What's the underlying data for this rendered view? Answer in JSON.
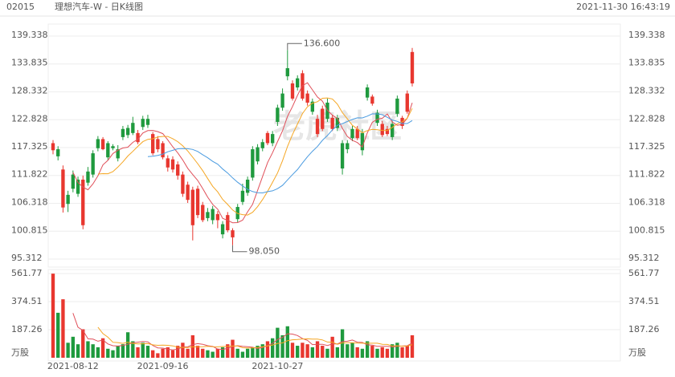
{
  "header": {
    "code": "02015",
    "title": "理想汽车-W - 日K线图",
    "timestamp": "2021-11-30 16:43:19"
  },
  "chart_data": {
    "type": "candlestick",
    "watermark": "老虎社区",
    "up_color": "#e8372f",
    "down_color": "#1f9a3e",
    "ma_colors": [
      "#e0505a",
      "#f5a623",
      "#4a9be0"
    ],
    "categories": [
      null,
      null,
      null,
      null,
      "2021-08-12",
      null,
      null,
      null,
      null,
      null,
      null,
      null,
      null,
      null,
      null,
      null,
      null,
      null,
      null,
      null,
      null,
      null,
      "2021-09-16",
      null,
      null,
      null,
      null,
      null,
      null,
      null,
      null,
      null,
      null,
      null,
      null,
      null,
      null,
      null,
      null,
      null,
      null,
      null,
      null,
      null,
      null,
      "2021-10-27",
      null,
      null,
      null,
      null,
      null,
      null,
      null,
      null,
      null,
      null,
      null,
      null,
      null,
      null,
      null,
      null,
      null,
      null,
      null,
      null,
      null,
      null,
      null,
      null,
      null,
      null,
      null
    ],
    "open": [
      116.8,
      117.0,
      105.5,
      108.0,
      112.0,
      111.0,
      102.0,
      112.6,
      116.2,
      119.0,
      117.0,
      118.2,
      117.6,
      117.0,
      121.0,
      121.2,
      122.2,
      118.4,
      123.0,
      123.0,
      116.2,
      117.0,
      115.4,
      113.4,
      113.0,
      111.8,
      108.2,
      107.0,
      102.0,
      104.0,
      103.0,
      104.6,
      105.2,
      103.0,
      102.2,
      101.0,
      99.6,
      105.6,
      108.8,
      111.0,
      117.0,
      117.4,
      118.4,
      118.2,
      120.0,
      125.2,
      128.0,
      133.0,
      127.0,
      131.0,
      127.0,
      126.2,
      126.4,
      120.0,
      121.0,
      126.2,
      121.0,
      123.2,
      118.2,
      118.2,
      121.0,
      119.2,
      120.2,
      129.2,
      126.0,
      124.2,
      119.8,
      120.0,
      122.0,
      127.0,
      121.6,
      124.4,
      130.0
    ],
    "high": [
      118.8,
      117.6,
      113.8,
      108.8,
      112.8,
      111.6,
      111.8,
      113.5,
      116.8,
      119.6,
      119.4,
      118.6,
      118.0,
      117.8,
      121.6,
      121.8,
      123.4,
      120.8,
      123.6,
      123.8,
      120.4,
      119.6,
      118.6,
      115.8,
      115.6,
      114.6,
      112.6,
      110.6,
      109.6,
      109.8,
      106.6,
      105.4,
      105.8,
      104.8,
      102.8,
      104.6,
      101.4,
      106.2,
      110.2,
      111.6,
      117.6,
      118.0,
      119.0,
      120.6,
      120.6,
      125.8,
      129.0,
      136.6,
      130.6,
      131.6,
      132.6,
      128.6,
      127.0,
      123.8,
      125.6,
      127.0,
      123.8,
      123.8,
      118.8,
      118.8,
      121.6,
      121.6,
      121.0,
      129.8,
      127.8,
      124.8,
      122.6,
      121.6,
      122.6,
      127.6,
      123.6,
      128.6,
      137.0
    ],
    "low": [
      116.0,
      114.8,
      104.5,
      104.6,
      108.5,
      107.6,
      101.2,
      109.8,
      111.4,
      116.6,
      116.8,
      114.8,
      116.8,
      114.6,
      118.8,
      119.2,
      119.8,
      118.0,
      120.8,
      121.2,
      115.8,
      116.4,
      115.0,
      112.6,
      112.4,
      111.0,
      107.6,
      106.4,
      99.0,
      103.4,
      102.6,
      102.8,
      102.2,
      101.4,
      99.4,
      100.6,
      98.05,
      102.6,
      106.0,
      107.8,
      110.8,
      114.0,
      116.6,
      117.8,
      117.6,
      121.6,
      124.6,
      130.6,
      126.6,
      128.6,
      126.6,
      125.6,
      123.8,
      119.4,
      120.6,
      122.4,
      120.6,
      120.6,
      112.0,
      116.2,
      118.6,
      118.8,
      115.8,
      126.6,
      125.6,
      121.6,
      119.4,
      119.6,
      118.8,
      123.4,
      121.0,
      124.0,
      129.4
    ],
    "close": [
      118.2,
      115.6,
      113.0,
      106.2,
      109.2,
      108.2,
      111.0,
      110.4,
      112.0,
      117.2,
      119.0,
      115.4,
      117.2,
      115.2,
      119.4,
      119.8,
      120.2,
      120.2,
      121.4,
      121.8,
      120.0,
      119.0,
      118.2,
      115.2,
      115.0,
      114.0,
      112.0,
      110.0,
      109.0,
      109.2,
      106.0,
      103.4,
      103.0,
      104.2,
      100.2,
      104.0,
      101.0,
      103.2,
      106.6,
      108.4,
      111.4,
      114.6,
      117.2,
      120.2,
      118.2,
      122.4,
      125.2,
      131.4,
      130.0,
      129.2,
      132.0,
      128.0,
      124.4,
      123.0,
      125.0,
      123.0,
      123.2,
      121.2,
      113.2,
      117.0,
      119.2,
      121.0,
      116.8,
      127.2,
      127.4,
      122.2,
      122.0,
      121.0,
      119.4,
      124.0,
      123.2,
      128.0,
      136.2
    ],
    "volume": [
      561,
      300,
      390,
      100,
      140,
      90,
      190,
      110,
      90,
      70,
      130,
      60,
      50,
      80,
      90,
      170,
      110,
      70,
      100,
      80,
      50,
      30,
      60,
      70,
      50,
      80,
      100,
      60,
      150,
      80,
      60,
      50,
      40,
      60,
      70,
      90,
      120,
      60,
      40,
      60,
      70,
      80,
      90,
      110,
      130,
      200,
      150,
      210,
      100,
      80,
      100,
      90,
      70,
      110,
      80,
      60,
      140,
      70,
      190,
      90,
      100,
      70,
      60,
      110,
      80,
      60,
      70,
      60,
      90,
      100,
      70,
      80,
      150
    ],
    "ylim": [
      95.312,
      139.338
    ],
    "yticks": [
      95.312,
      100.815,
      106.318,
      111.822,
      117.325,
      122.828,
      128.332,
      133.835,
      139.338
    ],
    "volume_ylim": [
      0,
      561.77
    ],
    "volume_yticks": [
      187.26,
      374.51,
      561.77
    ],
    "volume_unit": "万股",
    "annotations": [
      {
        "value": 136.6,
        "label": "136.600"
      },
      {
        "value": 98.05,
        "label": "98.050"
      }
    ]
  }
}
